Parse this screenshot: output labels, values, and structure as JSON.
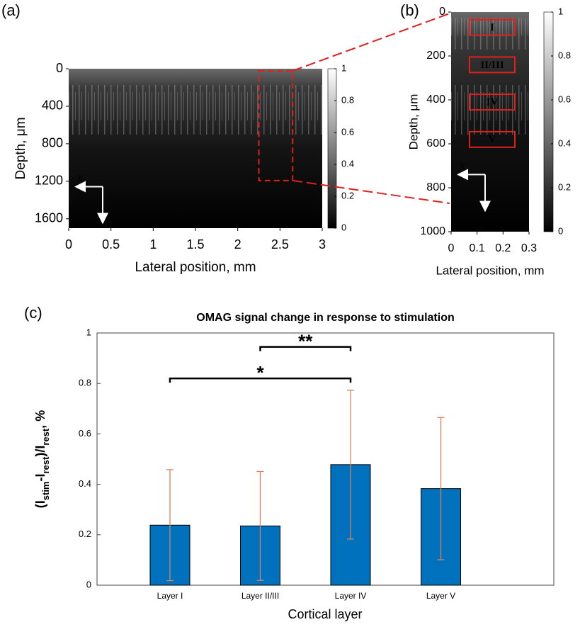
{
  "panel_labels": [
    "(a)",
    "(b)",
    "(c)"
  ],
  "chart_data": [
    {
      "type": "image",
      "xlabel": "Lateral position, mm",
      "ylabel": "Depth, μm",
      "xlim": [
        0,
        3
      ],
      "xticks": [
        0,
        0.5,
        1,
        1.5,
        2,
        2.5,
        3
      ],
      "ylim": [
        0,
        1700
      ],
      "yticks": [
        0,
        400,
        800,
        1200,
        1600
      ],
      "y_reversed": true,
      "colorbar_lim": [
        0,
        1
      ],
      "colorbar_ticks": [
        0,
        0.2,
        0.4,
        0.6,
        0.8,
        1
      ],
      "axis_arrows": [
        "x",
        "y"
      ],
      "zoom_region": {
        "xlim": [
          2.25,
          2.65
        ],
        "ylim": [
          0,
          1170
        ],
        "color": "#e0201b"
      }
    },
    {
      "type": "image",
      "xlabel": "Lateral position, mm",
      "ylabel": "Depth, μm",
      "xlim": [
        0,
        0.3
      ],
      "xticks": [
        0,
        0.1,
        0.2,
        0.3
      ],
      "ylim": [
        0,
        1000
      ],
      "yticks": [
        0,
        200,
        400,
        600,
        800,
        1000
      ],
      "y_reversed": true,
      "colorbar_lim": [
        0,
        1
      ],
      "colorbar_ticks": [
        0,
        0.2,
        0.4,
        0.6,
        0.8,
        1
      ],
      "axis_arrows": [
        "x",
        "y"
      ],
      "regions": [
        {
          "label": "I",
          "depth": 70
        },
        {
          "label": "II/III",
          "depth": 240
        },
        {
          "label": "IV",
          "depth": 410
        },
        {
          "label": "V",
          "depth": 580
        }
      ],
      "region_color": "#e0201b"
    },
    {
      "type": "bar",
      "title": "OMAG signal change in response to stimulation",
      "xlabel": "Cortical layer",
      "ylabel_parts": [
        "(I",
        "stim",
        "-I",
        "rest",
        ")/I",
        "rest",
        ", %"
      ],
      "categories": [
        "Layer I",
        "Layer II/III",
        "Layer IV",
        "Layer V"
      ],
      "values": [
        0.238,
        0.235,
        0.478,
        0.383
      ],
      "errors": [
        0.22,
        0.216,
        0.295,
        0.282
      ],
      "color": "#0072bd",
      "error_color": "#d9805f",
      "ylim": [
        0,
        1
      ],
      "yticks": [
        0,
        0.2,
        0.4,
        0.6,
        0.8,
        1
      ],
      "significance": [
        {
          "label": "**",
          "from": 1,
          "to": 2,
          "y": 0.945
        },
        {
          "label": "*",
          "from": 0,
          "to": 2,
          "y": 0.82
        }
      ]
    }
  ]
}
